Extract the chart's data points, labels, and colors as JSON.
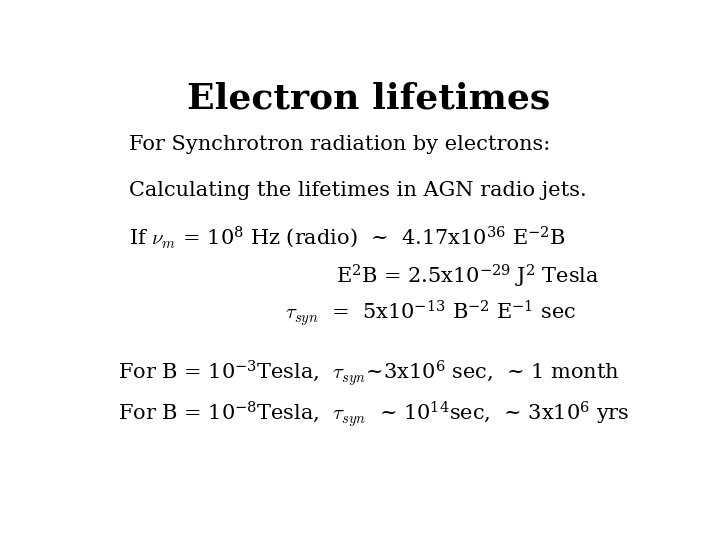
{
  "title": "Electron lifetimes",
  "title_fontsize": 26,
  "background_color": "#ffffff",
  "text_color": "#000000",
  "body_fontsize": 15,
  "super_fontsize": 10,
  "font_family": "serif"
}
